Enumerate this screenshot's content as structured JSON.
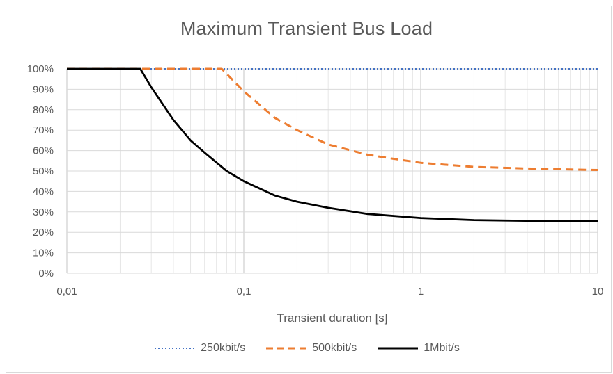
{
  "chart_data": {
    "type": "line",
    "title": "Maximum Transient  Bus Load",
    "xlabel": "Transient duration [s]",
    "ylabel": "",
    "x_scale": "log",
    "xlim": [
      0.01,
      10
    ],
    "ylim": [
      0,
      100
    ],
    "x_ticks": [
      0.01,
      0.1,
      1,
      10
    ],
    "x_tick_labels": [
      "0,01",
      "0,1",
      "1",
      "10"
    ],
    "y_ticks": [
      0,
      10,
      20,
      30,
      40,
      50,
      60,
      70,
      80,
      90,
      100
    ],
    "y_tick_labels": [
      "0%",
      "10%",
      "20%",
      "30%",
      "40%",
      "50%",
      "60%",
      "70%",
      "80%",
      "90%",
      "100%"
    ],
    "grid": true,
    "legend_position": "bottom",
    "series": [
      {
        "name": "250kbit/s",
        "color": "#4472c4",
        "dash": "dotted",
        "points": [
          [
            0.01,
            100
          ],
          [
            10,
            100
          ]
        ]
      },
      {
        "name": "500kbit/s",
        "color": "#ed7d31",
        "dash": "dashed",
        "points": [
          [
            0.01,
            100
          ],
          [
            0.025,
            100
          ],
          [
            0.05,
            100
          ],
          [
            0.075,
            100
          ],
          [
            0.1,
            89
          ],
          [
            0.15,
            76
          ],
          [
            0.2,
            70
          ],
          [
            0.3,
            63
          ],
          [
            0.5,
            58
          ],
          [
            0.7,
            56
          ],
          [
            1,
            54
          ],
          [
            2,
            52
          ],
          [
            5,
            51
          ],
          [
            10,
            50.5
          ]
        ]
      },
      {
        "name": "1Mbit/s",
        "color": "#000000",
        "dash": "solid",
        "points": [
          [
            0.01,
            100
          ],
          [
            0.026,
            100
          ],
          [
            0.03,
            91
          ],
          [
            0.04,
            75
          ],
          [
            0.05,
            65
          ],
          [
            0.06,
            59
          ],
          [
            0.08,
            50
          ],
          [
            0.1,
            45
          ],
          [
            0.15,
            38
          ],
          [
            0.2,
            35
          ],
          [
            0.3,
            32
          ],
          [
            0.5,
            29
          ],
          [
            1,
            27
          ],
          [
            2,
            26
          ],
          [
            5,
            25.5
          ],
          [
            10,
            25.5
          ]
        ]
      }
    ]
  }
}
